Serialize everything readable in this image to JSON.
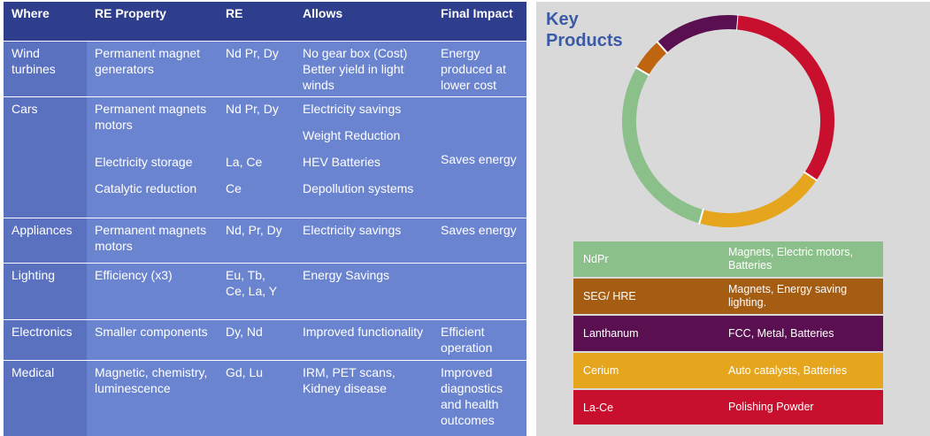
{
  "table": {
    "headers": [
      "Where",
      "RE Property",
      "RE",
      "Allows",
      "Final Impact"
    ],
    "rows": [
      {
        "where": "Wind turbines",
        "property": [
          "Permanent magnet generators"
        ],
        "re": [
          "Nd Pr, Dy"
        ],
        "allows": [
          "No gear box (Cost) Better yield in light winds"
        ],
        "impact": "Energy produced at lower cost"
      },
      {
        "where": "Cars",
        "property": [
          "Permanent magnets motors",
          "Electricity storage",
          "Catalytic reduction"
        ],
        "re": [
          "Nd Pr, Dy",
          "La, Ce",
          "Ce"
        ],
        "allows": [
          "Electricity savings",
          "Weight Reduction",
          "HEV Batteries",
          "Depollution systems"
        ],
        "impact": "Saves energy"
      },
      {
        "where": "Appliances",
        "property": [
          "Permanent magnets motors"
        ],
        "re": [
          "Nd, Pr, Dy"
        ],
        "allows": [
          "Electricity savings"
        ],
        "impact": "Saves energy"
      },
      {
        "where": "Lighting",
        "property": [
          "Efficiency (x3)"
        ],
        "re": [
          "Eu, Tb, Ce, La, Y"
        ],
        "allows": [
          "Energy Savings"
        ],
        "impact": ""
      },
      {
        "where": "Electronics",
        "property": [
          "Smaller components"
        ],
        "re": [
          "Dy, Nd"
        ],
        "allows": [
          "Improved functionality"
        ],
        "impact": "Efficient operation"
      },
      {
        "where": "Medical",
        "property": [
          "Magnetic, chemistry, luminescence"
        ],
        "re": [
          "Gd, Lu"
        ],
        "allows": [
          "IRM, PET scans, Kidney disease"
        ],
        "impact": "Improved diagnostics and health outcomes"
      }
    ]
  },
  "products": {
    "title": "Key Products"
  },
  "chart_data": {
    "type": "pie",
    "style": "donut",
    "title": "Key Products",
    "categories": [
      "La-Ce",
      "Cerium",
      "NdPr",
      "SEG/ HRE",
      "Lanthanum"
    ],
    "values": [
      33,
      20,
      29,
      5,
      13
    ],
    "colors": [
      "#c8102e",
      "#e5a51c",
      "#8cc08b",
      "#c0650f",
      "#5a1050"
    ]
  },
  "legend": [
    {
      "name": "NdPr",
      "desc": "Magnets, Electric motors, Batteries",
      "color": "#8cc08b"
    },
    {
      "name": "SEG/ HRE",
      "desc": "Magnets, Energy saving lighting.",
      "color": "#a55c13"
    },
    {
      "name": "Lanthanum",
      "desc": "FCC, Metal, Batteries",
      "color": "#5a1050"
    },
    {
      "name": "Cerium",
      "desc": "Auto catalysts, Batteries",
      "color": "#e5a51c"
    },
    {
      "name": "La-Ce",
      "desc": "Polishing Powder",
      "color": "#c8102e"
    }
  ]
}
